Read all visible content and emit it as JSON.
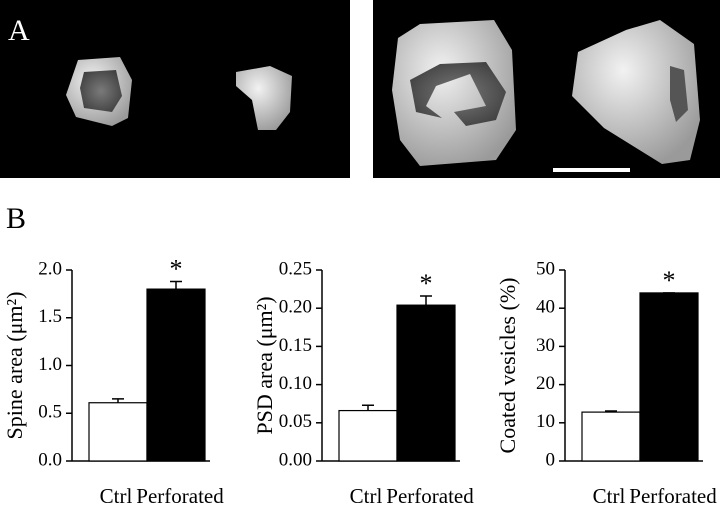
{
  "panel_labels": {
    "a": "A",
    "b": "B"
  },
  "chart_data": [
    {
      "type": "bar",
      "ylabel": "Spine area (μm²)",
      "categories": [
        "Ctrl",
        "Perforated"
      ],
      "values": [
        0.61,
        1.8
      ],
      "errors": [
        0.04,
        0.08
      ],
      "colors": [
        "#ffffff",
        "#000000"
      ],
      "ylim": [
        0,
        2
      ],
      "yticks": [
        {
          "value": 0,
          "label": "0.0"
        },
        0.5,
        {
          "value": 1,
          "label": "1.0"
        },
        1.5,
        {
          "value": 2,
          "label": "2.0"
        }
      ],
      "annotation": "*"
    },
    {
      "type": "bar",
      "ylabel": "PSD area (μm²)",
      "categories": [
        "Ctrl",
        "Perforated"
      ],
      "values": [
        0.066,
        0.204
      ],
      "errors": [
        0.007,
        0.012
      ],
      "colors": [
        "#ffffff",
        "#000000"
      ],
      "ylim": [
        0,
        0.25
      ],
      "yticks": [
        {
          "value": 0,
          "label": "0.00"
        },
        0.05,
        {
          "value": 0.1,
          "label": "0.10"
        },
        0.15,
        {
          "value": 0.2,
          "label": "0.20"
        },
        0.25
      ],
      "annotation": "*"
    },
    {
      "type": "bar",
      "ylabel": "Coated vesicles (%)",
      "categories": [
        "Ctrl",
        "Perforated"
      ],
      "values": [
        12.8,
        44
      ],
      "errors": [
        0.3,
        0
      ],
      "colors": [
        "#ffffff",
        "#000000"
      ],
      "ylim": [
        0,
        50
      ],
      "yticks": [
        0,
        10,
        20,
        30,
        40,
        50
      ],
      "annotation": "*"
    }
  ]
}
